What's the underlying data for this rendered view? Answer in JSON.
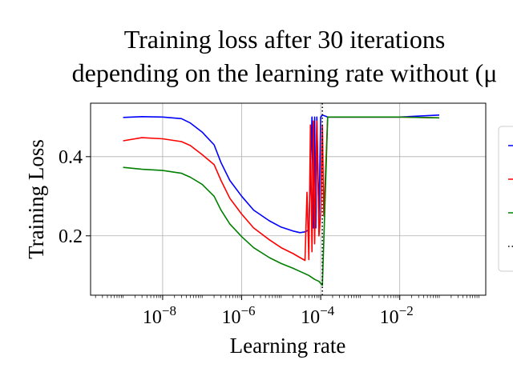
{
  "chart_data": {
    "type": "line",
    "title": [
      "Training loss after 30 iterations",
      "depending on the learning rate without (μ"
    ],
    "xlabel": "Learning rate",
    "ylabel": "Training Loss",
    "xscale": "log",
    "xlim": [
      1.5e-10,
      1.5
    ],
    "ylim": [
      0.05,
      0.535
    ],
    "grid": true,
    "legend_position": "right",
    "x_ticks": [
      {
        "value": 1e-08,
        "base": "10",
        "exp": "−8"
      },
      {
        "value": 1e-06,
        "base": "10",
        "exp": "−6"
      },
      {
        "value": 0.0001,
        "base": "10",
        "exp": "−4"
      },
      {
        "value": 0.01,
        "base": "10",
        "exp": "−2"
      }
    ],
    "y_ticks": [
      {
        "value": 0.2,
        "label": "0.2"
      },
      {
        "value": 0.4,
        "label": "0.4"
      }
    ],
    "vline": {
      "x": 0.00011,
      "style": "dotted",
      "color": "#000000"
    },
    "series": [
      {
        "color": "#0000ff",
        "points": [
          [
            1e-09,
            0.499
          ],
          [
            3e-09,
            0.501
          ],
          [
            1e-08,
            0.5
          ],
          [
            3e-08,
            0.496
          ],
          [
            5e-08,
            0.485
          ],
          [
            1e-07,
            0.462
          ],
          [
            2e-07,
            0.43
          ],
          [
            3e-07,
            0.385
          ],
          [
            5e-07,
            0.34
          ],
          [
            1e-06,
            0.3
          ],
          [
            2e-06,
            0.265
          ],
          [
            5e-06,
            0.238
          ],
          [
            1e-05,
            0.222
          ],
          [
            2e-05,
            0.212
          ],
          [
            3e-05,
            0.208
          ],
          [
            4e-05,
            0.21
          ],
          [
            5e-05,
            0.215
          ],
          [
            6e-05,
            0.5
          ],
          [
            6.5e-05,
            0.22
          ],
          [
            7e-05,
            0.5
          ],
          [
            7.5e-05,
            0.22
          ],
          [
            8e-05,
            0.5
          ],
          [
            9e-05,
            0.24
          ],
          [
            0.0001,
            0.5
          ],
          [
            0.00011,
            0.505
          ],
          [
            0.00015,
            0.5
          ],
          [
            0.001,
            0.5
          ],
          [
            0.01,
            0.5
          ],
          [
            0.1,
            0.505
          ]
        ]
      },
      {
        "color": "#ff0000",
        "points": [
          [
            1e-09,
            0.44
          ],
          [
            3e-09,
            0.448
          ],
          [
            1e-08,
            0.445
          ],
          [
            3e-08,
            0.438
          ],
          [
            5e-08,
            0.428
          ],
          [
            1e-07,
            0.405
          ],
          [
            2e-07,
            0.38
          ],
          [
            3e-07,
            0.34
          ],
          [
            5e-07,
            0.295
          ],
          [
            1e-06,
            0.255
          ],
          [
            2e-06,
            0.22
          ],
          [
            5e-06,
            0.19
          ],
          [
            1e-05,
            0.17
          ],
          [
            2e-05,
            0.155
          ],
          [
            3e-05,
            0.145
          ],
          [
            4e-05,
            0.138
          ],
          [
            4.5e-05,
            0.31
          ],
          [
            5e-05,
            0.14
          ],
          [
            5.5e-05,
            0.48
          ],
          [
            6e-05,
            0.16
          ],
          [
            6.5e-05,
            0.49
          ],
          [
            7e-05,
            0.18
          ],
          [
            8e-05,
            0.49
          ],
          [
            9e-05,
            0.2
          ],
          [
            0.0001,
            0.26
          ],
          [
            0.00011,
            0.48
          ],
          [
            0.00012,
            0.25
          ],
          [
            0.00015,
            0.5
          ],
          [
            0.001,
            0.5
          ],
          [
            0.01,
            0.5
          ],
          [
            0.1,
            0.498
          ]
        ]
      },
      {
        "color": "#008000",
        "points": [
          [
            1e-09,
            0.373
          ],
          [
            3e-09,
            0.368
          ],
          [
            1e-08,
            0.365
          ],
          [
            3e-08,
            0.358
          ],
          [
            5e-08,
            0.348
          ],
          [
            1e-07,
            0.33
          ],
          [
            2e-07,
            0.3
          ],
          [
            3e-07,
            0.265
          ],
          [
            5e-07,
            0.23
          ],
          [
            1e-06,
            0.198
          ],
          [
            2e-06,
            0.17
          ],
          [
            5e-06,
            0.145
          ],
          [
            1e-05,
            0.13
          ],
          [
            2e-05,
            0.118
          ],
          [
            3e-05,
            0.11
          ],
          [
            5e-05,
            0.1
          ],
          [
            7e-05,
            0.09
          ],
          [
            9e-05,
            0.085
          ],
          [
            0.0001,
            0.08
          ],
          [
            0.00011,
            0.075
          ],
          [
            0.00013,
            0.3
          ],
          [
            0.00015,
            0.5
          ],
          [
            0.001,
            0.5
          ],
          [
            0.01,
            0.5
          ],
          [
            0.1,
            0.498
          ]
        ]
      }
    ],
    "legend": [
      {
        "color": "#0000ff",
        "style": "solid"
      },
      {
        "color": "#ff0000",
        "style": "solid"
      },
      {
        "color": "#008000",
        "style": "solid"
      },
      {
        "color": "#000000",
        "style": "dotted"
      }
    ]
  }
}
